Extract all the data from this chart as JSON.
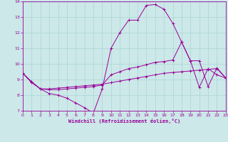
{
  "xlabel": "Windchill (Refroidissement éolien,°C)",
  "xlim": [
    0,
    23
  ],
  "ylim": [
    7,
    14
  ],
  "xticks": [
    0,
    1,
    2,
    3,
    4,
    5,
    6,
    7,
    8,
    9,
    10,
    11,
    12,
    13,
    14,
    15,
    16,
    17,
    18,
    19,
    20,
    21,
    22,
    23
  ],
  "yticks": [
    7,
    8,
    9,
    10,
    11,
    12,
    13,
    14
  ],
  "bg_color": "#cce8e8",
  "line_color": "#990099",
  "grid_color": "#aad4d4",
  "line1_y": [
    9.4,
    8.8,
    8.4,
    8.1,
    8.0,
    7.8,
    7.5,
    7.2,
    6.85,
    8.4,
    11.0,
    12.0,
    12.8,
    12.8,
    13.75,
    13.8,
    13.5,
    12.6,
    11.4,
    10.2,
    8.5,
    9.7,
    9.3,
    9.1
  ],
  "line2_y": [
    9.4,
    8.85,
    8.4,
    8.35,
    8.35,
    8.4,
    8.45,
    8.5,
    8.55,
    8.65,
    9.3,
    9.5,
    9.7,
    9.8,
    9.95,
    10.1,
    10.15,
    10.25,
    11.4,
    10.2,
    10.2,
    8.55,
    9.75,
    9.1
  ],
  "line3_y": [
    9.4,
    8.85,
    8.4,
    8.4,
    8.45,
    8.5,
    8.55,
    8.6,
    8.65,
    8.7,
    8.8,
    8.9,
    9.0,
    9.1,
    9.2,
    9.3,
    9.4,
    9.45,
    9.5,
    9.55,
    9.6,
    9.65,
    9.7,
    9.1
  ]
}
